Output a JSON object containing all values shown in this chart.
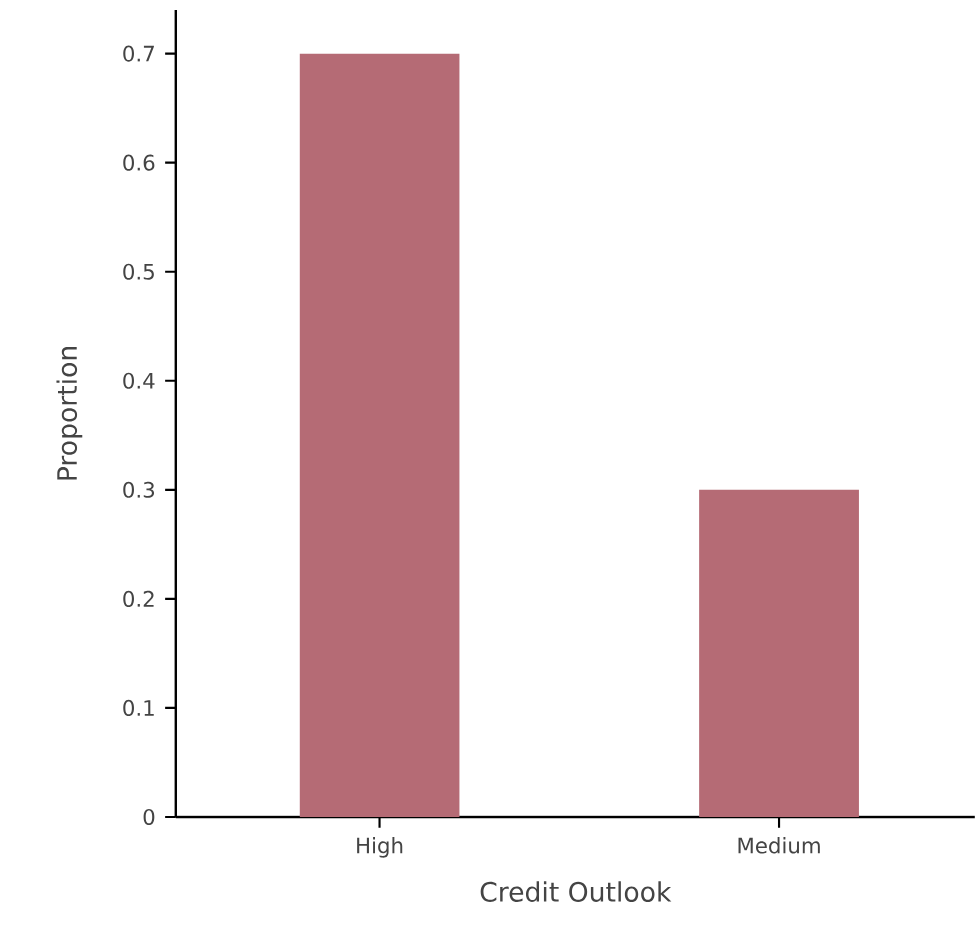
{
  "chart_data": {
    "type": "bar",
    "xlabel": "Credit Outlook",
    "ylabel": "Proportion",
    "categories": [
      "High",
      "Medium"
    ],
    "values": [
      0.7,
      0.3
    ],
    "color": "#b56b75",
    "ylim": [
      0,
      0.74
    ],
    "yticks": [
      0,
      0.1,
      0.2,
      0.3,
      0.4,
      0.5,
      0.6,
      0.7
    ],
    "grid": false,
    "legend": false
  }
}
